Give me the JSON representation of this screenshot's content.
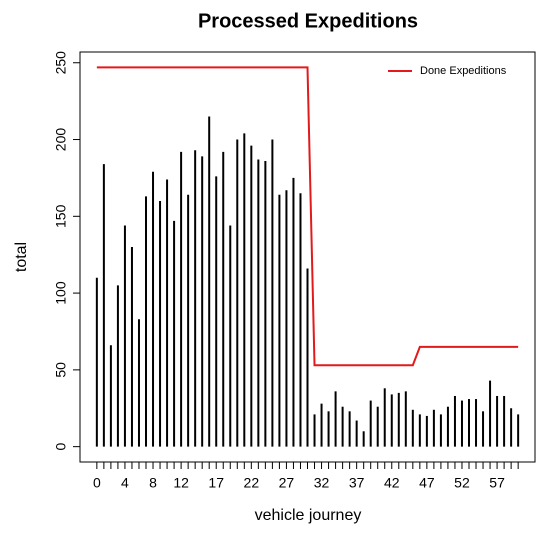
{
  "chart_data": {
    "type": "bar",
    "title": "Processed Expeditions",
    "x_label": "vehicle journey",
    "y_label": "total",
    "x": [
      0,
      1,
      2,
      3,
      4,
      5,
      6,
      7,
      8,
      9,
      10,
      11,
      12,
      13,
      14,
      15,
      16,
      17,
      18,
      19,
      20,
      21,
      22,
      23,
      24,
      25,
      26,
      27,
      28,
      29,
      30,
      31,
      32,
      33,
      34,
      35,
      36,
      37,
      38,
      39,
      40,
      41,
      42,
      43,
      44,
      45,
      46,
      47,
      48,
      49,
      50,
      51,
      52,
      53,
      54,
      55,
      56,
      57,
      58,
      59,
      60
    ],
    "values": [
      110,
      184,
      66,
      105,
      144,
      130,
      83,
      163,
      179,
      160,
      174,
      147,
      192,
      164,
      193,
      189,
      215,
      176,
      192,
      144,
      200,
      204,
      196,
      187,
      186,
      200,
      164,
      167,
      175,
      165,
      116,
      21,
      28,
      23,
      36,
      26,
      23,
      17,
      10,
      30,
      26,
      38,
      34,
      35,
      36,
      24,
      21,
      20,
      24,
      21,
      26,
      33,
      30,
      31,
      31,
      23,
      43,
      33,
      33,
      25,
      21
    ],
    "color": "#000000",
    "series": [
      {
        "name": "Done Expeditions",
        "color": "#e31a1c",
        "values": [
          247,
          247,
          247,
          247,
          247,
          247,
          247,
          247,
          247,
          247,
          247,
          247,
          247,
          247,
          247,
          247,
          247,
          247,
          247,
          247,
          247,
          247,
          247,
          247,
          247,
          247,
          247,
          247,
          247,
          247,
          247,
          53,
          53,
          53,
          53,
          53,
          53,
          53,
          53,
          53,
          53,
          53,
          53,
          53,
          53,
          53,
          65,
          65,
          65,
          65,
          65,
          65,
          65,
          65,
          65,
          65,
          65,
          65,
          65,
          65,
          65
        ]
      }
    ],
    "xlim": [
      -2.4,
      62.4
    ],
    "xticks": [
      0,
      4,
      8,
      12,
      17,
      22,
      27,
      32,
      37,
      42,
      47,
      52,
      57
    ],
    "ylim": [
      -10,
      257
    ],
    "yticks": [
      0,
      50,
      100,
      150,
      200,
      250
    ],
    "legend": "topright"
  }
}
